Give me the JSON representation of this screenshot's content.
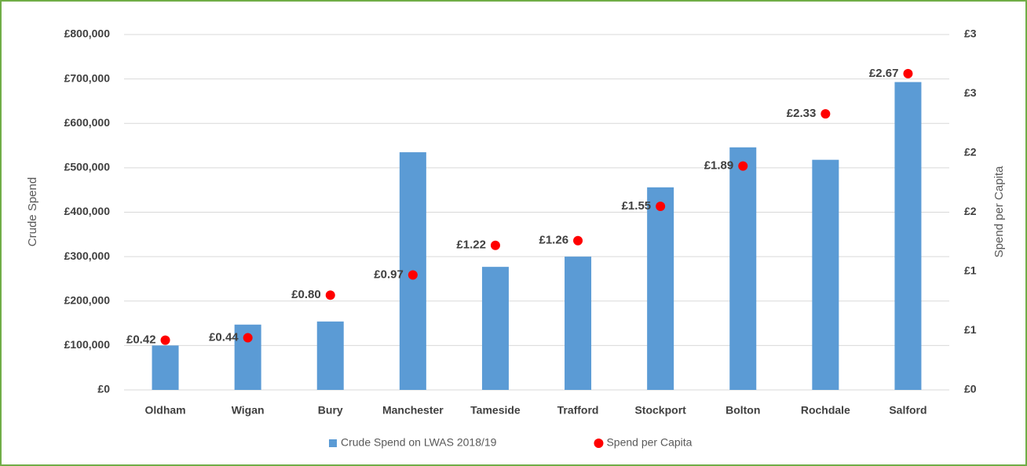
{
  "chart_data": {
    "type": "bar",
    "categories": [
      "Oldham",
      "Wigan",
      "Bury",
      "Manchester",
      "Tameside",
      "Trafford",
      "Stockport",
      "Bolton",
      "Rochdale",
      "Salford"
    ],
    "series": [
      {
        "name": "Crude Spend on LWAS 2018/19",
        "type": "bar",
        "color": "#5b9bd5",
        "values": [
          100000,
          147000,
          154000,
          535000,
          277000,
          300000,
          456000,
          546000,
          518000,
          693000
        ]
      },
      {
        "name": "Spend per Capita",
        "type": "scatter",
        "axis": "y2",
        "color": "#ff0000",
        "values": [
          0.42,
          0.44,
          0.8,
          0.97,
          1.22,
          1.26,
          1.55,
          1.89,
          2.33,
          2.67
        ],
        "value_labels": [
          "£0.42",
          "£0.44",
          "£0.80",
          "£0.97",
          "£1.22",
          "£1.26",
          "£1.55",
          "£1.89",
          "£2.33",
          "£2.67"
        ]
      }
    ],
    "ylabel": "Crude Spend",
    "y2label": "Spend per Capita",
    "ylim": [
      0,
      800000
    ],
    "yticks": [
      {
        "value": 0,
        "label": "£0"
      },
      {
        "value": 100000,
        "label": "£100,000"
      },
      {
        "value": 200000,
        "label": "£200,000"
      },
      {
        "value": 300000,
        "label": "£300,000"
      },
      {
        "value": 400000,
        "label": "£400,000"
      },
      {
        "value": 500000,
        "label": "£500,000"
      },
      {
        "value": 600000,
        "label": "£600,000"
      },
      {
        "value": 700000,
        "label": "£700,000"
      },
      {
        "value": 800000,
        "label": "£800,000"
      }
    ],
    "y2lim": [
      0,
      3
    ],
    "y2ticks": [
      {
        "value": 0,
        "label": "£0"
      },
      {
        "value": 0.5,
        "label": "£1"
      },
      {
        "value": 1,
        "label": "£1"
      },
      {
        "value": 1.5,
        "label": "£2"
      },
      {
        "value": 2,
        "label": "£2"
      },
      {
        "value": 2.5,
        "label": "£3"
      },
      {
        "value": 3,
        "label": "£3"
      }
    ],
    "grid": true,
    "legend": "bottom"
  }
}
